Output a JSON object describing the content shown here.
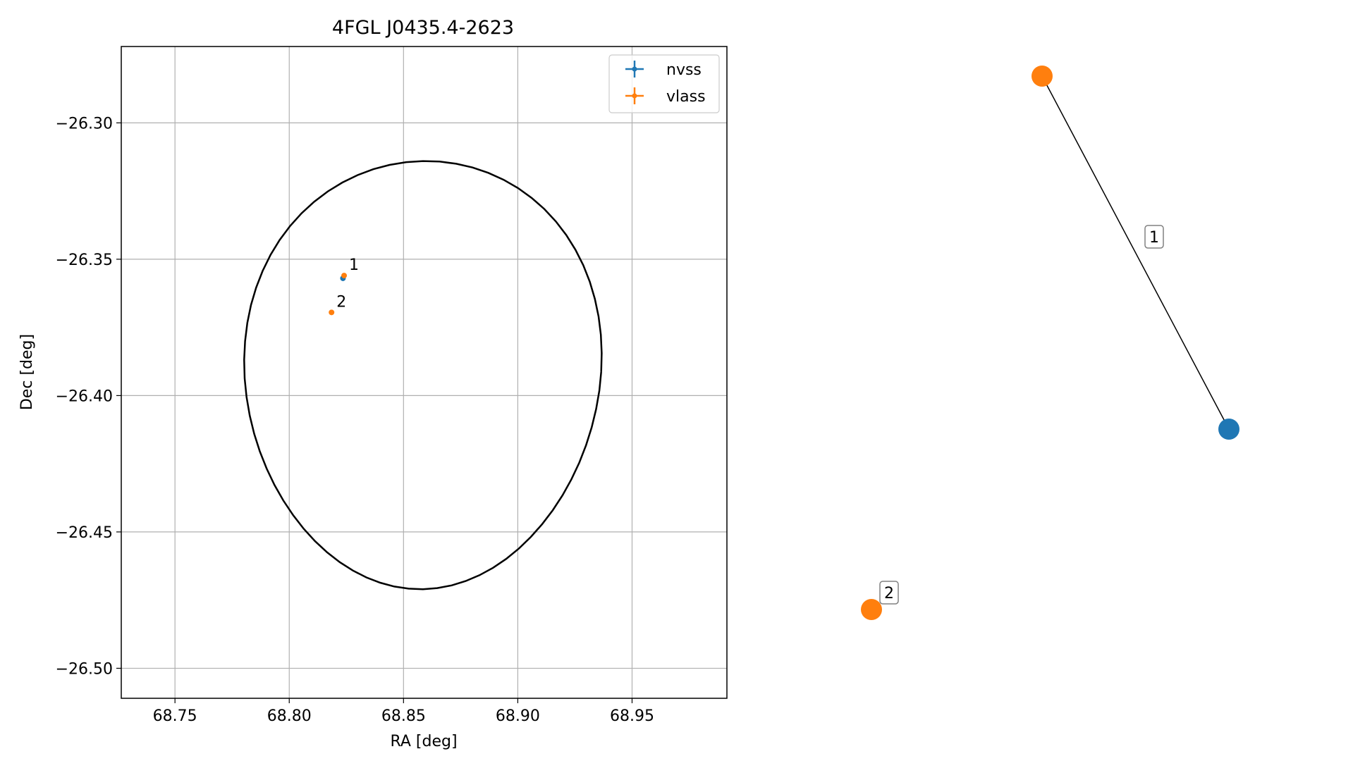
{
  "chart_data": [
    {
      "type": "scatter",
      "title": "4FGL J0435.4-2623",
      "xlabel": "RA [deg]",
      "ylabel": "Dec [deg]",
      "xlim": [
        68.7265,
        68.9915
      ],
      "ylim": [
        -26.511,
        -26.272
      ],
      "xticks": [
        68.75,
        68.8,
        68.85,
        68.9,
        68.95
      ],
      "xtick_labels": [
        "68.75",
        "68.80",
        "68.85",
        "68.90",
        "68.95"
      ],
      "yticks": [
        -26.3,
        -26.35,
        -26.4,
        -26.45,
        -26.5
      ],
      "ytick_labels": [
        "−26.30",
        "−26.35",
        "−26.40",
        "−26.45",
        "−26.50"
      ],
      "grid": true,
      "legend_position": "top-right",
      "series": [
        {
          "name": "nvss",
          "color": "#1f77b4",
          "points": [
            {
              "x": 68.8235,
              "y": -26.357
            }
          ]
        },
        {
          "name": "vlass",
          "color": "#ff7f0e",
          "points": [
            {
              "x": 68.824,
              "y": -26.356
            },
            {
              "x": 68.8185,
              "y": -26.3695
            }
          ]
        }
      ],
      "annotations": [
        {
          "text": "1",
          "x": 68.824,
          "y": -26.356
        },
        {
          "text": "2",
          "x": 68.8185,
          "y": -26.3695
        }
      ],
      "ellipse": {
        "center_x": 68.8585,
        "center_y": -26.3925,
        "ra_half_width": 0.078,
        "dec_half_height": 0.0785,
        "color": "#000000"
      }
    },
    {
      "type": "network-graph",
      "nodes": [
        {
          "id": "a",
          "series": "vlass",
          "color": "#ff7f0e"
        },
        {
          "id": "b",
          "series": "nvss",
          "color": "#1f77b4"
        },
        {
          "id": "c",
          "series": "vlass",
          "color": "#ff7f0e"
        }
      ],
      "edges": [
        {
          "from": "a",
          "to": "b",
          "label": "1"
        }
      ],
      "node_labels": [
        {
          "node": "c",
          "label": "2"
        }
      ]
    }
  ]
}
